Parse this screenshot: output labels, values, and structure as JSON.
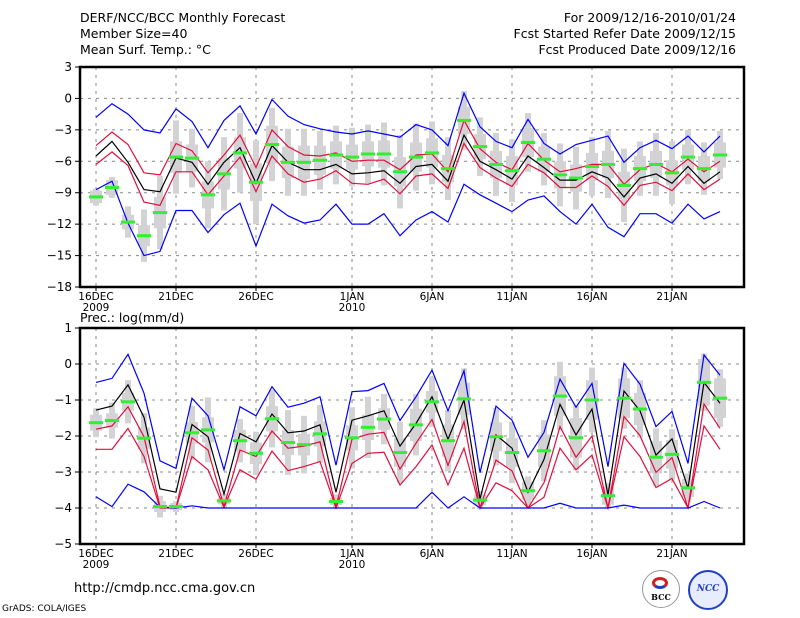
{
  "header": {
    "title": "DERF/NCC/BCC Monthly Forecast",
    "member_size": "Member Size=40",
    "variable_top": "Mean Surf. Temp.: °C",
    "period": "For 2009/12/16-2010/01/24",
    "refer_date": "Fcst Started Refer Date 2009/12/15",
    "produced_date": "Fcst Produced Date 2009/12/16"
  },
  "footer": {
    "url": "http://cmdp.ncc.cma.gov.cn",
    "grads": "GrADS: COLA/IGES",
    "logos": [
      {
        "name": "bcc-logo",
        "text": "BCC"
      },
      {
        "name": "ncc-logo",
        "text": "NCC"
      }
    ]
  },
  "colors": {
    "envelope": "#0000ff",
    "spread": "#e0103c",
    "mean": "#000000",
    "obs": "#33ee33",
    "obs_range": "#d3d3d6",
    "grid": "#888888"
  },
  "chart_data": [
    {
      "type": "line",
      "title": "Mean Surf. Temp.: °C",
      "xlabel": "",
      "ylabel": "°C",
      "ylim": [
        -18,
        3
      ],
      "yticks": [
        3,
        0,
        -3,
        -6,
        -9,
        -12,
        -15,
        -18
      ],
      "ytick_labels": [
        "3",
        "0",
        "−3",
        "−6",
        "−9",
        "−12",
        "−15",
        "−18"
      ],
      "grid": true,
      "n_days": 40,
      "xticks": [
        {
          "day": 1,
          "label": "16DEC",
          "sub": "2009"
        },
        {
          "day": 6,
          "label": "21DEC",
          "sub": ""
        },
        {
          "day": 11,
          "label": "26DEC",
          "sub": ""
        },
        {
          "day": 17,
          "label": "1JAN",
          "sub": "2010"
        },
        {
          "day": 22,
          "label": "6JAN",
          "sub": ""
        },
        {
          "day": 27,
          "label": "11JAN",
          "sub": ""
        },
        {
          "day": 32,
          "label": "16JAN",
          "sub": ""
        },
        {
          "day": 37,
          "label": "21JAN",
          "sub": ""
        }
      ],
      "series": [
        {
          "name": "ensemble-max",
          "color": "#0000ff",
          "values": [
            -1.8,
            -0.5,
            -1.5,
            -3.0,
            -3.3,
            -1.0,
            -2.2,
            -4.7,
            -2.1,
            -0.7,
            -3.4,
            -0.1,
            -1.7,
            -2.5,
            -2.9,
            -3.2,
            -3.4,
            -3.1,
            -3.4,
            -3.7,
            -2.5,
            -3.0,
            -4.5,
            0.5,
            -2.7,
            -4.1,
            -4.7,
            -2.0,
            -4.3,
            -5.3,
            -4.4,
            -4.0,
            -3.6,
            -6.1,
            -4.7,
            -4.0,
            -4.8,
            -3.6,
            -5.1,
            -3.6
          ]
        },
        {
          "name": "mean-plus-sd",
          "color": "#e0103c",
          "values": [
            -4.5,
            -3.2,
            -4.4,
            -7.1,
            -7.3,
            -4.3,
            -5.0,
            -7.1,
            -5.4,
            -3.5,
            -6.6,
            -3.0,
            -4.6,
            -5.4,
            -5.5,
            -5.2,
            -6.0,
            -5.9,
            -5.9,
            -6.8,
            -5.4,
            -5.3,
            -7.0,
            -2.1,
            -4.8,
            -6.1,
            -6.8,
            -4.3,
            -5.9,
            -7.0,
            -6.7,
            -6.3,
            -6.3,
            -8.2,
            -6.8,
            -6.2,
            -7.0,
            -5.8,
            -7.0,
            -6.0
          ]
        },
        {
          "name": "ensemble-mean",
          "color": "#000000",
          "values": [
            -5.5,
            -4.1,
            -6.1,
            -8.7,
            -8.9,
            -5.7,
            -6.1,
            -8.2,
            -6.1,
            -4.7,
            -8.1,
            -4.5,
            -6.1,
            -6.8,
            -6.8,
            -6.3,
            -7.2,
            -7.1,
            -6.9,
            -8.1,
            -6.5,
            -6.3,
            -7.9,
            -3.5,
            -6.0,
            -6.8,
            -7.7,
            -5.5,
            -6.6,
            -7.8,
            -7.8,
            -7.0,
            -7.6,
            -9.4,
            -7.6,
            -7.2,
            -8.1,
            -6.5,
            -8.1,
            -7.0
          ]
        },
        {
          "name": "mean-minus-sd",
          "color": "#e0103c",
          "values": [
            -6.3,
            -5.1,
            -6.4,
            -9.9,
            -10.2,
            -7.0,
            -7.0,
            -9.2,
            -7.4,
            -5.6,
            -8.9,
            -5.5,
            -7.2,
            -8.0,
            -7.7,
            -6.9,
            -8.1,
            -8.2,
            -7.7,
            -9.1,
            -7.4,
            -7.2,
            -8.6,
            -4.3,
            -6.6,
            -7.6,
            -8.4,
            -6.3,
            -7.1,
            -8.5,
            -8.5,
            -7.4,
            -8.4,
            -10.2,
            -8.3,
            -8.0,
            -8.8,
            -7.2,
            -8.7,
            -7.7
          ]
        },
        {
          "name": "ensemble-min",
          "color": "#0000ff",
          "values": [
            -8.7,
            -7.9,
            -11.9,
            -15.0,
            -14.6,
            -10.7,
            -10.7,
            -12.8,
            -11.1,
            -10.0,
            -14.1,
            -10.1,
            -11.2,
            -11.9,
            -11.6,
            -10.1,
            -12.0,
            -12.0,
            -11.0,
            -13.1,
            -11.6,
            -10.8,
            -11.8,
            -8.2,
            -9.2,
            -10.0,
            -10.8,
            -9.7,
            -9.3,
            -10.8,
            -12.0,
            -10.1,
            -12.3,
            -13.2,
            -11.0,
            -11.0,
            -11.9,
            -10.1,
            -11.5,
            -10.8
          ]
        }
      ],
      "observed": {
        "name": "climatology-obs",
        "color": "#33ee33",
        "values": [
          -9.4,
          -8.5,
          -11.8,
          -13.1,
          -10.9,
          -5.6,
          -5.7,
          -9.2,
          -7.2,
          -5.2,
          -8.0,
          -4.4,
          -6.1,
          -6.1,
          -5.9,
          -5.4,
          -5.6,
          -5.3,
          -5.3,
          -7.0,
          -5.6,
          -5.2,
          -6.7,
          -2.1,
          -4.6,
          -6.3,
          -6.9,
          -4.2,
          -5.8,
          -7.3,
          -7.6,
          -6.5,
          -6.3,
          -8.3,
          -6.7,
          -6.3,
          -7.1,
          -5.6,
          -6.7,
          -5.4
        ],
        "box_halfwidth": [
          0.6,
          0.7,
          0.7,
          1.0,
          1.5,
          1.5,
          1.3,
          1.3,
          1.5,
          1.5,
          1.8,
          1.8,
          1.5,
          1.6,
          1.4,
          1.3,
          1.2,
          1.2,
          1.3,
          1.4,
          1.4,
          1.4,
          1.3,
          1.3,
          1.2,
          1.3,
          1.4,
          1.4,
          1.2,
          1.3,
          1.3,
          1.3,
          1.3,
          1.3,
          1.2,
          1.3,
          1.2,
          1.2,
          1.2,
          1.2
        ],
        "whisker_halfwidth": [
          0.8,
          1.0,
          1.5,
          2.5,
          3.5,
          3.5,
          2.8,
          3.2,
          3.5,
          3.8,
          4.0,
          3.5,
          3.2,
          3.2,
          2.8,
          2.8,
          2.8,
          2.8,
          3.0,
          3.5,
          3.2,
          3.0,
          3.0,
          2.8,
          2.8,
          3.0,
          3.0,
          2.8,
          2.5,
          3.0,
          3.0,
          2.8,
          3.2,
          3.5,
          2.6,
          3.0,
          3.0,
          2.6,
          2.5,
          2.3
        ]
      }
    },
    {
      "type": "line",
      "title": "Prec.: log(mm/d)",
      "xlabel": "",
      "ylabel": "log(mm/d)",
      "ylim": [
        -5,
        1
      ],
      "yticks": [
        1,
        0,
        -1,
        -2,
        -3,
        -4,
        -5
      ],
      "ytick_labels": [
        "1",
        "0",
        "−1",
        "−2",
        "−3",
        "−4",
        "−5"
      ],
      "grid": true,
      "n_days": 40,
      "xticks": [
        {
          "day": 1,
          "label": "16DEC",
          "sub": "2009"
        },
        {
          "day": 6,
          "label": "21DEC",
          "sub": ""
        },
        {
          "day": 11,
          "label": "26DEC",
          "sub": ""
        },
        {
          "day": 17,
          "label": "1JAN",
          "sub": "2010"
        },
        {
          "day": 22,
          "label": "6JAN",
          "sub": ""
        },
        {
          "day": 27,
          "label": "11JAN",
          "sub": ""
        },
        {
          "day": 32,
          "label": "16JAN",
          "sub": ""
        },
        {
          "day": 37,
          "label": "21JAN",
          "sub": ""
        }
      ],
      "series": [
        {
          "name": "ensemble-max",
          "color": "#0000ff",
          "values": [
            -0.51,
            -0.4,
            0.27,
            -0.81,
            -2.69,
            -2.9,
            -0.95,
            -1.44,
            -2.94,
            -1.19,
            -1.44,
            -0.63,
            -1.2,
            -1.09,
            -0.91,
            -2.81,
            -0.77,
            -0.74,
            -0.54,
            -1.57,
            -0.91,
            -0.17,
            -1.3,
            -0.19,
            -3.02,
            -1.17,
            -1.56,
            -2.59,
            -1.9,
            -0.42,
            -1.2,
            -0.54,
            -2.85,
            0.02,
            -0.56,
            -1.74,
            -1.32,
            -2.76,
            0.25,
            -0.31
          ]
        },
        {
          "name": "ensemble-mean",
          "color": "#000000",
          "values": [
            -1.28,
            -1.17,
            -0.58,
            -1.48,
            -3.47,
            -3.56,
            -1.68,
            -2.02,
            -3.61,
            -1.93,
            -2.16,
            -1.39,
            -1.91,
            -1.86,
            -1.69,
            -3.56,
            -1.56,
            -1.44,
            -1.3,
            -2.28,
            -1.65,
            -0.91,
            -2.09,
            -1.0,
            -3.75,
            -1.97,
            -2.34,
            -3.56,
            -2.65,
            -1.12,
            -1.97,
            -1.25,
            -3.64,
            -0.75,
            -1.3,
            -2.53,
            -2.08,
            -3.45,
            -0.51,
            -1.09
          ]
        },
        {
          "name": "mean-plus-sd",
          "color": "#e0103c",
          "values": [
            -1.81,
            -1.72,
            -1.19,
            -2.02,
            -3.96,
            -4.0,
            -2.05,
            -2.39,
            -3.96,
            -2.39,
            -2.57,
            -1.86,
            -2.34,
            -2.28,
            -2.16,
            -3.98,
            -2.09,
            -1.95,
            -1.9,
            -2.92,
            -2.2,
            -1.54,
            -2.82,
            -1.6,
            -4.0,
            -2.67,
            -2.97,
            -4.0,
            -3.3,
            -1.74,
            -2.59,
            -2.0,
            -4.0,
            -1.46,
            -1.99,
            -3.01,
            -2.6,
            -4.0,
            -1.11,
            -1.79
          ]
        },
        {
          "name": "mean-minus-sd",
          "color": "#e0103c",
          "values": [
            -2.37,
            -2.37,
            -1.79,
            -2.57,
            -4.0,
            -4.0,
            -2.57,
            -2.94,
            -3.98,
            -2.94,
            -3.2,
            -2.42,
            -2.96,
            -2.85,
            -2.71,
            -4.0,
            -2.76,
            -2.48,
            -2.45,
            -3.36,
            -2.85,
            -2.25,
            -3.36,
            -2.34,
            -4.0,
            -3.3,
            -3.52,
            -4.0,
            -3.7,
            -2.34,
            -2.94,
            -2.53,
            -4.0,
            -2.02,
            -2.57,
            -3.43,
            -3.18,
            -4.0,
            -1.72,
            -2.37
          ]
        },
        {
          "name": "ensemble-min",
          "color": "#0000ff",
          "values": [
            -3.69,
            -3.96,
            -3.34,
            -3.55,
            -3.98,
            -4.0,
            -3.94,
            -4.0,
            -4.0,
            -4.0,
            -4.0,
            -4.0,
            -4.0,
            -4.0,
            -4.0,
            -4.0,
            -4.0,
            -4.0,
            -4.0,
            -4.0,
            -4.0,
            -3.56,
            -4.0,
            -3.69,
            -4.0,
            -4.0,
            -4.0,
            -4.0,
            -4.0,
            -3.87,
            -4.0,
            -4.0,
            -4.0,
            -3.92,
            -4.0,
            -4.0,
            -4.0,
            -4.0,
            -3.82,
            -4.0
          ]
        }
      ],
      "observed": {
        "name": "climatology-obs",
        "color": "#33ee33",
        "values": [
          -1.63,
          -1.57,
          -1.05,
          -2.06,
          -3.96,
          -3.96,
          -1.91,
          -1.83,
          -3.8,
          -2.13,
          -2.48,
          -1.52,
          -2.18,
          -2.24,
          -1.94,
          -3.82,
          -2.05,
          -1.76,
          -1.53,
          -2.46,
          -1.69,
          -1.05,
          -2.13,
          -0.97,
          -3.78,
          -2.02,
          -2.46,
          -3.52,
          -2.41,
          -0.89,
          -2.05,
          -1.0,
          -3.66,
          -0.95,
          -1.25,
          -2.59,
          -2.51,
          -3.44,
          -0.51,
          -0.95
        ],
        "box_halfwidth": [
          0.22,
          0.2,
          0.25,
          0.3,
          0.15,
          0.1,
          0.3,
          0.35,
          0.1,
          0.3,
          0.3,
          0.35,
          0.35,
          0.3,
          0.35,
          0.1,
          0.35,
          0.35,
          0.3,
          0.4,
          0.45,
          0.3,
          0.45,
          0.45,
          0.15,
          0.4,
          0.4,
          0.25,
          0.45,
          0.55,
          0.55,
          0.55,
          0.25,
          0.55,
          0.45,
          0.45,
          0.4,
          0.25,
          0.65,
          0.55
        ],
        "whisker_halfwidth": [
          0.4,
          0.5,
          0.6,
          0.7,
          0.3,
          0.15,
          0.75,
          0.9,
          0.2,
          0.6,
          0.6,
          0.8,
          0.9,
          0.8,
          0.8,
          0.2,
          0.85,
          0.85,
          0.7,
          0.85,
          0.85,
          0.7,
          0.85,
          0.85,
          0.25,
          0.8,
          0.85,
          0.4,
          0.85,
          0.95,
          0.9,
          0.9,
          0.35,
          0.85,
          0.8,
          0.8,
          0.7,
          0.4,
          0.8,
          0.8
        ]
      }
    }
  ]
}
